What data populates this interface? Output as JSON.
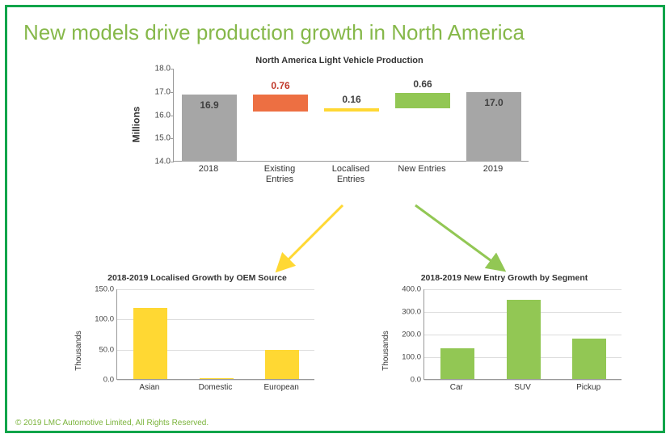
{
  "colors": {
    "frame": "#0ba54a",
    "title": "#86b84a",
    "copyright": "#7ab33a",
    "gray_bar": "#a6a6a6",
    "red_bar": "#ed6f42",
    "yellow_bar": "#ffd833",
    "green_bar": "#92c754",
    "axis_text": "#444444",
    "grid": "#dddddd",
    "arrow_yellow": "#ffd833",
    "arrow_green": "#92c754"
  },
  "title": "New models drive production growth in North America",
  "copyright": "© 2019 LMC Automotive Limited, All Rights Reserved.",
  "waterfall": {
    "title": "North America Light Vehicle Production",
    "y_label": "Millions",
    "y_min": 14.0,
    "y_max": 18.0,
    "y_ticks": [
      "14.0",
      "15.0",
      "16.0",
      "17.0",
      "18.0"
    ],
    "categories": [
      "2018",
      "Existing\nEntries",
      "Localised\nEntries",
      "New Entries",
      "2019"
    ],
    "bars": [
      {
        "type": "abs",
        "value": 16.9,
        "label": "16.9",
        "color_key": "gray_bar",
        "label_color": "#404040",
        "label_inside": true
      },
      {
        "type": "delta",
        "start": 16.9,
        "end": 16.14,
        "label": "0.76",
        "color_key": "red_bar",
        "label_color": "#c0392b",
        "label_inside": false
      },
      {
        "type": "delta",
        "start": 16.14,
        "end": 16.3,
        "label": "0.16",
        "color_key": "yellow_bar",
        "label_color": "#404040",
        "label_inside": false
      },
      {
        "type": "delta",
        "start": 16.3,
        "end": 16.96,
        "label": "0.66",
        "color_key": "green_bar",
        "label_color": "#404040",
        "label_inside": false
      },
      {
        "type": "abs",
        "value": 17.0,
        "label": "17.0",
        "color_key": "gray_bar",
        "label_color": "#404040",
        "label_inside": true
      }
    ]
  },
  "localised": {
    "title": "2018-2019 Localised Growth by OEM Source",
    "y_label": "Thousands",
    "y_min": 0,
    "y_max": 150,
    "y_ticks": [
      "0.0",
      "50.0",
      "100.0",
      "150.0"
    ],
    "categories": [
      "Asian",
      "Domestic",
      "European"
    ],
    "values": [
      118,
      1,
      48
    ],
    "color_key": "yellow_bar"
  },
  "newentry": {
    "title": "2018-2019 New Entry Growth by Segment",
    "y_label": "Thousands",
    "y_min": 0,
    "y_max": 400,
    "y_ticks": [
      "0.0",
      "100.0",
      "200.0",
      "300.0",
      "400.0"
    ],
    "categories": [
      "Car",
      "SUV",
      "Pickup"
    ],
    "values": [
      135,
      350,
      180
    ],
    "color_key": "green_bar"
  }
}
